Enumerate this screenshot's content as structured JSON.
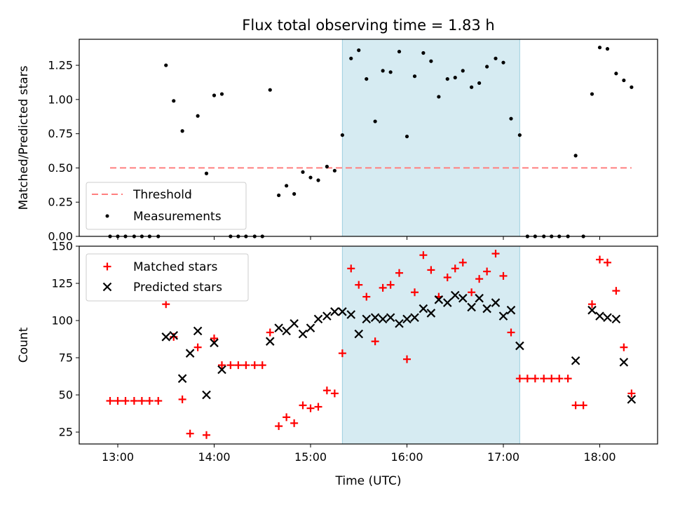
{
  "chart_data": [
    {
      "type": "scatter",
      "title": "Flux total observing time = 1.83 h",
      "xlabel": "",
      "ylabel": "Matched/Predicted stars",
      "xlim": [
        12.6,
        18.6
      ],
      "ylim": [
        0,
        1.44
      ],
      "yticks": [
        "0.00",
        "0.25",
        "0.50",
        "0.75",
        "1.00",
        "1.25"
      ],
      "ytick_values": [
        0,
        0.25,
        0.5,
        0.75,
        1.0,
        1.25
      ],
      "xticks": [
        13,
        14,
        15,
        16,
        17,
        18
      ],
      "shaded_region": {
        "x0": 15.33,
        "x1": 17.17,
        "color": "#add8e6"
      },
      "threshold": {
        "name": "Threshold",
        "value": 0.5,
        "x0": 12.92,
        "x1": 18.33,
        "color": "#ff7f7f"
      },
      "legend": {
        "placement": "lower-left",
        "entries": [
          "Threshold",
          "Measurements"
        ]
      },
      "series": [
        {
          "name": "Measurements",
          "color": "#000000",
          "points": [
            [
              12.92,
              0.0
            ],
            [
              13.0,
              0.0
            ],
            [
              13.08,
              0.0
            ],
            [
              13.17,
              0.0
            ],
            [
              13.25,
              0.0
            ],
            [
              13.33,
              0.0
            ],
            [
              13.42,
              0.0
            ],
            [
              13.5,
              1.25
            ],
            [
              13.58,
              0.99
            ],
            [
              13.67,
              0.77
            ],
            [
              13.75,
              0.31
            ],
            [
              13.83,
              0.88
            ],
            [
              13.92,
              0.46
            ],
            [
              14.0,
              1.03
            ],
            [
              14.08,
              1.04
            ],
            [
              14.17,
              0.0
            ],
            [
              14.25,
              0.0
            ],
            [
              14.33,
              0.0
            ],
            [
              14.42,
              0.0
            ],
            [
              14.5,
              0.0
            ],
            [
              14.58,
              1.07
            ],
            [
              14.67,
              0.3
            ],
            [
              14.75,
              0.37
            ],
            [
              14.83,
              0.31
            ],
            [
              14.92,
              0.47
            ],
            [
              15.0,
              0.43
            ],
            [
              15.08,
              0.41
            ],
            [
              15.17,
              0.51
            ],
            [
              15.25,
              0.48
            ],
            [
              15.33,
              0.74
            ],
            [
              15.42,
              1.3
            ],
            [
              15.5,
              1.36
            ],
            [
              15.58,
              1.15
            ],
            [
              15.67,
              0.84
            ],
            [
              15.75,
              1.21
            ],
            [
              15.83,
              1.2
            ],
            [
              15.92,
              1.35
            ],
            [
              16.0,
              0.73
            ],
            [
              16.08,
              1.17
            ],
            [
              16.17,
              1.34
            ],
            [
              16.25,
              1.28
            ],
            [
              16.33,
              1.02
            ],
            [
              16.42,
              1.15
            ],
            [
              16.5,
              1.16
            ],
            [
              16.58,
              1.21
            ],
            [
              16.67,
              1.09
            ],
            [
              16.75,
              1.12
            ],
            [
              16.83,
              1.24
            ],
            [
              16.92,
              1.3
            ],
            [
              17.0,
              1.27
            ],
            [
              17.08,
              0.86
            ],
            [
              17.17,
              0.74
            ],
            [
              17.25,
              0.0
            ],
            [
              17.33,
              0.0
            ],
            [
              17.42,
              0.0
            ],
            [
              17.5,
              0.0
            ],
            [
              17.58,
              0.0
            ],
            [
              17.67,
              0.0
            ],
            [
              17.75,
              0.59
            ],
            [
              17.83,
              0.0
            ],
            [
              17.92,
              1.04
            ],
            [
              18.0,
              1.38
            ],
            [
              18.08,
              1.37
            ],
            [
              18.17,
              1.19
            ],
            [
              18.25,
              1.14
            ],
            [
              18.33,
              1.09
            ]
          ]
        }
      ]
    },
    {
      "type": "scatter",
      "title": "",
      "xlabel": "Time (UTC)",
      "ylabel": "Count",
      "xlim": [
        12.6,
        18.6
      ],
      "ylim": [
        17,
        150
      ],
      "yticks": [
        "25",
        "50",
        "75",
        "100",
        "125",
        "150"
      ],
      "ytick_values": [
        25,
        50,
        75,
        100,
        125,
        150
      ],
      "xticks": [
        "13:00",
        "14:00",
        "15:00",
        "16:00",
        "17:00",
        "18:00"
      ],
      "xtick_values": [
        13,
        14,
        15,
        16,
        17,
        18
      ],
      "shaded_region": {
        "x0": 15.33,
        "x1": 17.17,
        "color": "#add8e6"
      },
      "legend": {
        "placement": "upper-left",
        "entries": [
          "Matched stars",
          "Predicted stars"
        ]
      },
      "series": [
        {
          "name": "Matched stars",
          "marker": "plus",
          "color": "#ff0000",
          "points": [
            [
              12.92,
              46
            ],
            [
              13.0,
              46
            ],
            [
              13.08,
              46
            ],
            [
              13.17,
              46
            ],
            [
              13.25,
              46
            ],
            [
              13.33,
              46
            ],
            [
              13.42,
              46
            ],
            [
              13.5,
              111
            ],
            [
              13.58,
              89
            ],
            [
              13.67,
              47
            ],
            [
              13.75,
              24
            ],
            [
              13.83,
              82
            ],
            [
              13.92,
              23
            ],
            [
              14.0,
              88
            ],
            [
              14.08,
              70
            ],
            [
              14.17,
              70
            ],
            [
              14.25,
              70
            ],
            [
              14.33,
              70
            ],
            [
              14.42,
              70
            ],
            [
              14.5,
              70
            ],
            [
              14.58,
              92
            ],
            [
              14.67,
              29
            ],
            [
              14.75,
              35
            ],
            [
              14.83,
              31
            ],
            [
              14.92,
              43
            ],
            [
              15.0,
              41
            ],
            [
              15.08,
              42
            ],
            [
              15.17,
              53
            ],
            [
              15.25,
              51
            ],
            [
              15.33,
              78
            ],
            [
              15.42,
              135
            ],
            [
              15.5,
              124
            ],
            [
              15.58,
              116
            ],
            [
              15.67,
              86
            ],
            [
              15.75,
              122
            ],
            [
              15.83,
              124
            ],
            [
              15.92,
              132
            ],
            [
              16.0,
              74
            ],
            [
              16.08,
              119
            ],
            [
              16.17,
              144
            ],
            [
              16.25,
              134
            ],
            [
              16.33,
              116
            ],
            [
              16.42,
              129
            ],
            [
              16.5,
              135
            ],
            [
              16.58,
              139
            ],
            [
              16.67,
              119
            ],
            [
              16.75,
              128
            ],
            [
              16.83,
              133
            ],
            [
              16.92,
              145
            ],
            [
              17.0,
              130
            ],
            [
              17.08,
              92
            ],
            [
              17.17,
              61
            ],
            [
              17.25,
              61
            ],
            [
              17.33,
              61
            ],
            [
              17.42,
              61
            ],
            [
              17.5,
              61
            ],
            [
              17.58,
              61
            ],
            [
              17.67,
              61
            ],
            [
              17.75,
              43
            ],
            [
              17.83,
              43
            ],
            [
              17.92,
              111
            ],
            [
              18.0,
              141
            ],
            [
              18.08,
              139
            ],
            [
              18.17,
              120
            ],
            [
              18.25,
              82
            ],
            [
              18.33,
              51
            ]
          ]
        },
        {
          "name": "Predicted stars",
          "marker": "x",
          "color": "#000000",
          "points": [
            [
              13.5,
              89
            ],
            [
              13.58,
              90
            ],
            [
              13.67,
              61
            ],
            [
              13.75,
              78
            ],
            [
              13.83,
              93
            ],
            [
              13.92,
              50
            ],
            [
              14.0,
              85
            ],
            [
              14.08,
              67
            ],
            [
              14.58,
              86
            ],
            [
              14.67,
              95
            ],
            [
              14.75,
              93
            ],
            [
              14.83,
              98
            ],
            [
              14.92,
              91
            ],
            [
              15.0,
              95
            ],
            [
              15.08,
              101
            ],
            [
              15.17,
              103
            ],
            [
              15.25,
              106
            ],
            [
              15.33,
              106
            ],
            [
              15.42,
              104
            ],
            [
              15.5,
              91
            ],
            [
              15.58,
              101
            ],
            [
              15.67,
              102
            ],
            [
              15.75,
              101
            ],
            [
              15.83,
              102
            ],
            [
              15.92,
              98
            ],
            [
              16.0,
              101
            ],
            [
              16.08,
              102
            ],
            [
              16.17,
              108
            ],
            [
              16.25,
              105
            ],
            [
              16.33,
              114
            ],
            [
              16.42,
              112
            ],
            [
              16.5,
              117
            ],
            [
              16.58,
              115
            ],
            [
              16.67,
              109
            ],
            [
              16.75,
              115
            ],
            [
              16.83,
              108
            ],
            [
              16.92,
              112
            ],
            [
              17.0,
              103
            ],
            [
              17.08,
              107
            ],
            [
              17.17,
              83
            ],
            [
              17.75,
              73
            ],
            [
              17.92,
              107
            ],
            [
              18.0,
              103
            ],
            [
              18.08,
              102
            ],
            [
              18.17,
              101
            ],
            [
              18.25,
              72
            ],
            [
              18.33,
              47
            ]
          ]
        }
      ]
    }
  ]
}
